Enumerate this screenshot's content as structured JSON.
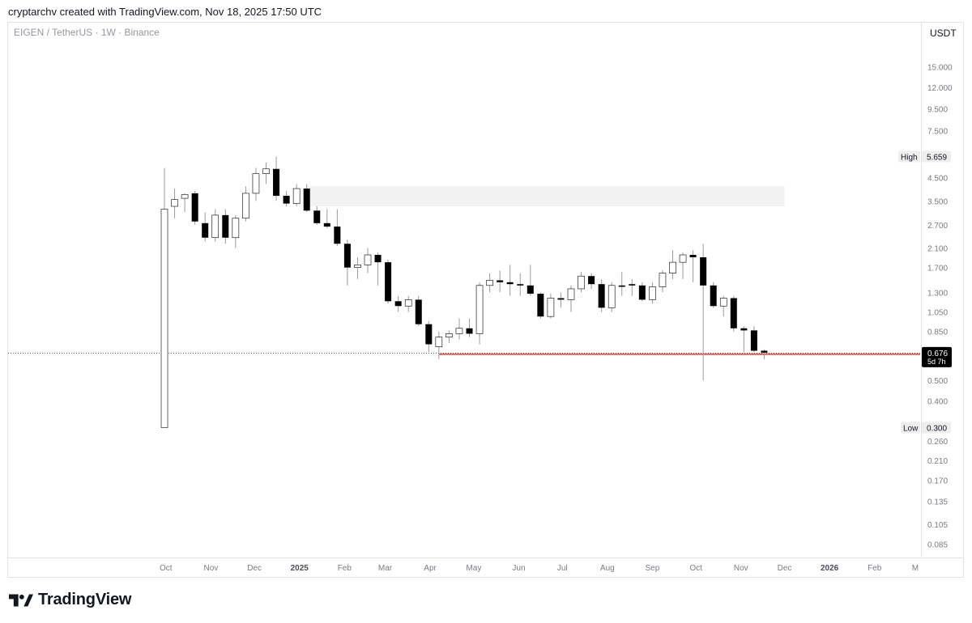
{
  "header": {
    "credit": "cryptarchv created with TradingView.com, Nov 18, 2025 17:50 UTC"
  },
  "symbol_line": "EIGEN / TetherUS · 1W · Binance",
  "unit": "USDT",
  "footer": {
    "brand": "TradingView",
    "logo_icon": "tradingview-logo-icon"
  },
  "colors": {
    "up_fill": "#ffffff",
    "down_fill": "#000000",
    "candle_border": "#000000",
    "wick": "#9a9a9a",
    "support_line": "#e05a5a",
    "zone": "#f2f2f2",
    "price_label_bg": "#000000"
  },
  "chart_data": {
    "type": "candlestick",
    "scale": "log",
    "ylim": [
      0.075,
      17.0
    ],
    "y_ticks": [
      "15.000",
      "12.000",
      "9.500",
      "7.500",
      "4.500",
      "3.500",
      "2.700",
      "2.100",
      "1.700",
      "1.300",
      "1.050",
      "0.850",
      "0.500",
      "0.400",
      "0.260",
      "0.210",
      "0.170",
      "0.135",
      "0.105",
      "0.085"
    ],
    "x_ticks": [
      {
        "label": "Oct",
        "t": "2024-10-01",
        "bold": false
      },
      {
        "label": "Nov",
        "t": "2024-11-01",
        "bold": false
      },
      {
        "label": "Dec",
        "t": "2024-12-01",
        "bold": false
      },
      {
        "label": "2025",
        "t": "2025-01-01",
        "bold": true
      },
      {
        "label": "Feb",
        "t": "2025-02-01",
        "bold": false
      },
      {
        "label": "Mar",
        "t": "2025-03-01",
        "bold": false
      },
      {
        "label": "Apr",
        "t": "2025-04-01",
        "bold": false
      },
      {
        "label": "May",
        "t": "2025-05-01",
        "bold": false
      },
      {
        "label": "Jun",
        "t": "2025-06-01",
        "bold": false
      },
      {
        "label": "Jul",
        "t": "2025-07-01",
        "bold": false
      },
      {
        "label": "Aug",
        "t": "2025-08-01",
        "bold": false
      },
      {
        "label": "Sep",
        "t": "2025-09-01",
        "bold": false
      },
      {
        "label": "Oct",
        "t": "2025-10-01",
        "bold": false
      },
      {
        "label": "Nov",
        "t": "2025-11-01",
        "bold": false
      },
      {
        "label": "Dec",
        "t": "2025-12-01",
        "bold": false
      },
      {
        "label": "2026",
        "t": "2026-01-01",
        "bold": true
      },
      {
        "label": "Feb",
        "t": "2026-02-01",
        "bold": false
      },
      {
        "label": "M",
        "t": "2026-03-01",
        "bold": false
      }
    ],
    "candles": [
      {
        "t": "2024-09-30",
        "o": 0.3,
        "h": 5.0,
        "l": 0.3,
        "c": 3.2
      },
      {
        "t": "2024-10-07",
        "o": 3.3,
        "h": 4.0,
        "l": 2.9,
        "c": 3.55
      },
      {
        "t": "2024-10-14",
        "o": 3.6,
        "h": 3.8,
        "l": 3.1,
        "c": 3.75
      },
      {
        "t": "2024-10-21",
        "o": 3.8,
        "h": 3.9,
        "l": 2.7,
        "c": 2.8
      },
      {
        "t": "2024-10-28",
        "o": 2.75,
        "h": 3.1,
        "l": 2.25,
        "c": 2.35
      },
      {
        "t": "2024-11-04",
        "o": 2.35,
        "h": 3.2,
        "l": 2.25,
        "c": 3.0
      },
      {
        "t": "2024-11-11",
        "o": 3.0,
        "h": 3.2,
        "l": 2.2,
        "c": 2.35
      },
      {
        "t": "2024-11-18",
        "o": 2.35,
        "h": 3.0,
        "l": 2.1,
        "c": 2.9
      },
      {
        "t": "2024-11-25",
        "o": 2.9,
        "h": 4.1,
        "l": 2.8,
        "c": 3.8
      },
      {
        "t": "2024-12-02",
        "o": 3.8,
        "h": 5.0,
        "l": 3.5,
        "c": 4.7
      },
      {
        "t": "2024-12-09",
        "o": 4.7,
        "h": 5.3,
        "l": 4.2,
        "c": 4.95
      },
      {
        "t": "2024-12-16",
        "o": 4.95,
        "h": 5.659,
        "l": 3.5,
        "c": 3.7
      },
      {
        "t": "2024-12-23",
        "o": 3.7,
        "h": 3.9,
        "l": 3.3,
        "c": 3.4
      },
      {
        "t": "2024-12-30",
        "o": 3.4,
        "h": 4.2,
        "l": 3.3,
        "c": 4.0
      },
      {
        "t": "2025-01-06",
        "o": 4.0,
        "h": 4.2,
        "l": 3.1,
        "c": 3.15
      },
      {
        "t": "2025-01-13",
        "o": 3.15,
        "h": 3.3,
        "l": 2.7,
        "c": 2.75
      },
      {
        "t": "2025-01-20",
        "o": 2.75,
        "h": 3.2,
        "l": 2.6,
        "c": 2.65
      },
      {
        "t": "2025-01-27",
        "o": 2.65,
        "h": 3.2,
        "l": 2.15,
        "c": 2.2
      },
      {
        "t": "2025-02-03",
        "o": 2.2,
        "h": 2.3,
        "l": 1.4,
        "c": 1.7
      },
      {
        "t": "2025-02-10",
        "o": 1.7,
        "h": 1.9,
        "l": 1.5,
        "c": 1.75
      },
      {
        "t": "2025-02-17",
        "o": 1.75,
        "h": 2.1,
        "l": 1.6,
        "c": 1.95
      },
      {
        "t": "2025-02-24",
        "o": 1.95,
        "h": 2.0,
        "l": 1.4,
        "c": 1.8
      },
      {
        "t": "2025-03-03",
        "o": 1.8,
        "h": 1.85,
        "l": 1.15,
        "c": 1.18
      },
      {
        "t": "2025-03-10",
        "o": 1.18,
        "h": 1.25,
        "l": 1.05,
        "c": 1.12
      },
      {
        "t": "2025-03-17",
        "o": 1.12,
        "h": 1.25,
        "l": 1.05,
        "c": 1.2
      },
      {
        "t": "2025-03-24",
        "o": 1.2,
        "h": 1.25,
        "l": 0.9,
        "c": 0.92
      },
      {
        "t": "2025-03-31",
        "o": 0.92,
        "h": 0.95,
        "l": 0.68,
        "c": 0.74
      },
      {
        "t": "2025-04-07",
        "o": 0.72,
        "h": 0.85,
        "l": 0.63,
        "c": 0.8
      },
      {
        "t": "2025-04-14",
        "o": 0.8,
        "h": 0.86,
        "l": 0.75,
        "c": 0.83
      },
      {
        "t": "2025-04-21",
        "o": 0.83,
        "h": 0.98,
        "l": 0.78,
        "c": 0.88
      },
      {
        "t": "2025-04-28",
        "o": 0.88,
        "h": 0.98,
        "l": 0.8,
        "c": 0.83
      },
      {
        "t": "2025-05-05",
        "o": 0.83,
        "h": 1.45,
        "l": 0.74,
        "c": 1.4
      },
      {
        "t": "2025-05-12",
        "o": 1.4,
        "h": 1.6,
        "l": 1.3,
        "c": 1.48
      },
      {
        "t": "2025-05-19",
        "o": 1.48,
        "h": 1.65,
        "l": 1.3,
        "c": 1.45
      },
      {
        "t": "2025-05-26",
        "o": 1.45,
        "h": 1.75,
        "l": 1.25,
        "c": 1.42
      },
      {
        "t": "2025-06-02",
        "o": 1.42,
        "h": 1.6,
        "l": 1.25,
        "c": 1.4
      },
      {
        "t": "2025-06-09",
        "o": 1.4,
        "h": 1.75,
        "l": 1.25,
        "c": 1.28
      },
      {
        "t": "2025-06-16",
        "o": 1.28,
        "h": 1.3,
        "l": 0.98,
        "c": 1.0
      },
      {
        "t": "2025-06-23",
        "o": 1.0,
        "h": 1.28,
        "l": 0.98,
        "c": 1.22
      },
      {
        "t": "2025-06-30",
        "o": 1.22,
        "h": 1.3,
        "l": 1.1,
        "c": 1.2
      },
      {
        "t": "2025-07-07",
        "o": 1.2,
        "h": 1.4,
        "l": 1.05,
        "c": 1.35
      },
      {
        "t": "2025-07-14",
        "o": 1.35,
        "h": 1.62,
        "l": 1.3,
        "c": 1.55
      },
      {
        "t": "2025-07-21",
        "o": 1.55,
        "h": 1.6,
        "l": 1.35,
        "c": 1.42
      },
      {
        "t": "2025-07-28",
        "o": 1.42,
        "h": 1.5,
        "l": 1.05,
        "c": 1.1
      },
      {
        "t": "2025-08-04",
        "o": 1.1,
        "h": 1.45,
        "l": 1.05,
        "c": 1.4
      },
      {
        "t": "2025-08-11",
        "o": 1.4,
        "h": 1.62,
        "l": 1.25,
        "c": 1.38
      },
      {
        "t": "2025-08-18",
        "o": 1.42,
        "h": 1.5,
        "l": 1.25,
        "c": 1.4
      },
      {
        "t": "2025-08-25",
        "o": 1.4,
        "h": 1.45,
        "l": 1.18,
        "c": 1.2
      },
      {
        "t": "2025-09-01",
        "o": 1.2,
        "h": 1.45,
        "l": 1.15,
        "c": 1.38
      },
      {
        "t": "2025-09-08",
        "o": 1.38,
        "h": 1.65,
        "l": 1.3,
        "c": 1.6
      },
      {
        "t": "2025-09-15",
        "o": 1.6,
        "h": 2.05,
        "l": 1.5,
        "c": 1.8
      },
      {
        "t": "2025-09-22",
        "o": 1.8,
        "h": 2.0,
        "l": 1.5,
        "c": 1.95
      },
      {
        "t": "2025-09-29",
        "o": 1.95,
        "h": 2.05,
        "l": 1.45,
        "c": 1.9
      },
      {
        "t": "2025-10-06",
        "o": 1.9,
        "h": 2.2,
        "l": 0.5,
        "c": 1.4
      },
      {
        "t": "2025-10-13",
        "o": 1.4,
        "h": 1.45,
        "l": 1.1,
        "c": 1.12
      },
      {
        "t": "2025-10-20",
        "o": 1.12,
        "h": 1.25,
        "l": 1.0,
        "c": 1.22
      },
      {
        "t": "2025-10-27",
        "o": 1.22,
        "h": 1.25,
        "l": 0.85,
        "c": 0.88
      },
      {
        "t": "2025-11-03",
        "o": 0.88,
        "h": 0.9,
        "l": 0.68,
        "c": 0.86
      },
      {
        "t": "2025-11-10",
        "o": 0.86,
        "h": 0.9,
        "l": 0.68,
        "c": 0.69
      },
      {
        "t": "2025-11-17",
        "o": 0.69,
        "h": 0.7,
        "l": 0.63,
        "c": 0.676
      }
    ],
    "zone": {
      "t0": "2025-01-06",
      "t1": "2025-12-01",
      "low": 3.3,
      "high": 4.1
    },
    "support_line": {
      "t0": "2025-04-07",
      "t1": "2026-03-08",
      "value": 0.665
    },
    "price_line_value": 0.676,
    "annotations": {
      "high_label": "High",
      "high_value": "5.659",
      "high_y": 5.659,
      "low_label": "Low",
      "low_value": "0.300",
      "low_y": 0.3,
      "last_price": "0.676",
      "last_countdown": "5d 7h",
      "last_y": 0.676
    }
  }
}
